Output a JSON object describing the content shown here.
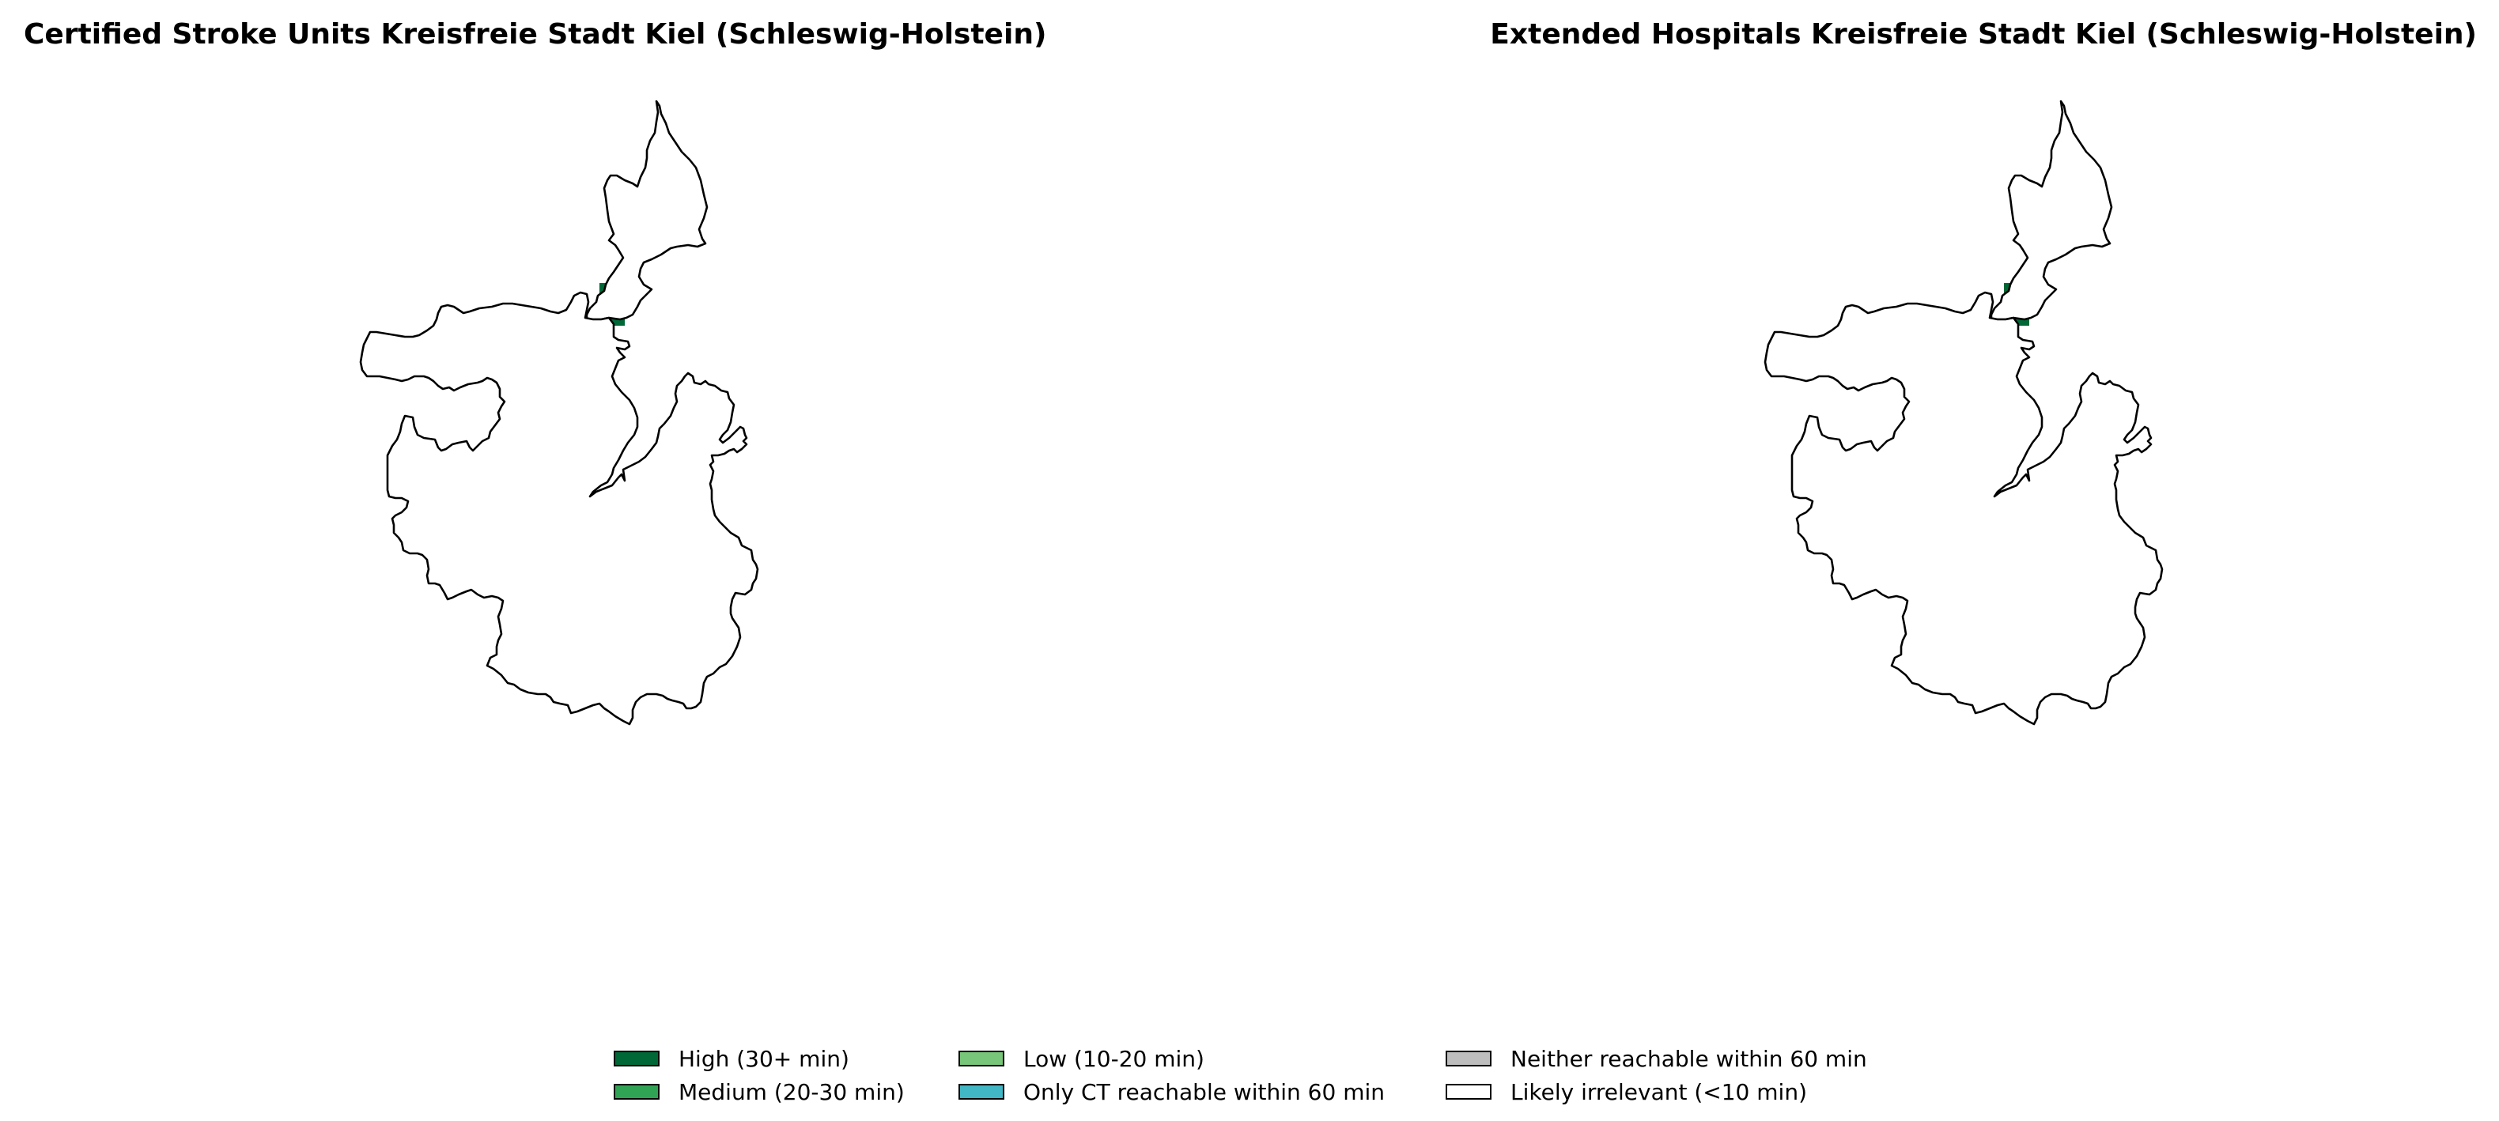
{
  "panels": [
    {
      "title": "Certified Stroke Units Kreisfreie Stadt Kiel (Schleswig-Holstein)",
      "highlighted_cell_category": "High (30+ min)"
    },
    {
      "title": "Extended Hospitals Kreisfreie Stadt Kiel (Schleswig-Holstein)",
      "highlighted_cell_category": "High (30+ min)"
    }
  ],
  "region_fill": "#ffffff",
  "region_stroke": "#000000",
  "legend": {
    "items": [
      {
        "label": "High (30+ min)",
        "color": "#006837"
      },
      {
        "label": "Medium (20-30 min)",
        "color": "#31a354"
      },
      {
        "label": "Low (10-20 min)",
        "color": "#78c679"
      },
      {
        "label": "Only CT reachable within 60 min",
        "color": "#41b6c4"
      },
      {
        "label": "Neither reachable within 60 min",
        "color": "#bdbdbd"
      },
      {
        "label": "Likely irrelevant (<10 min)",
        "color": "#ffffff"
      }
    ]
  }
}
